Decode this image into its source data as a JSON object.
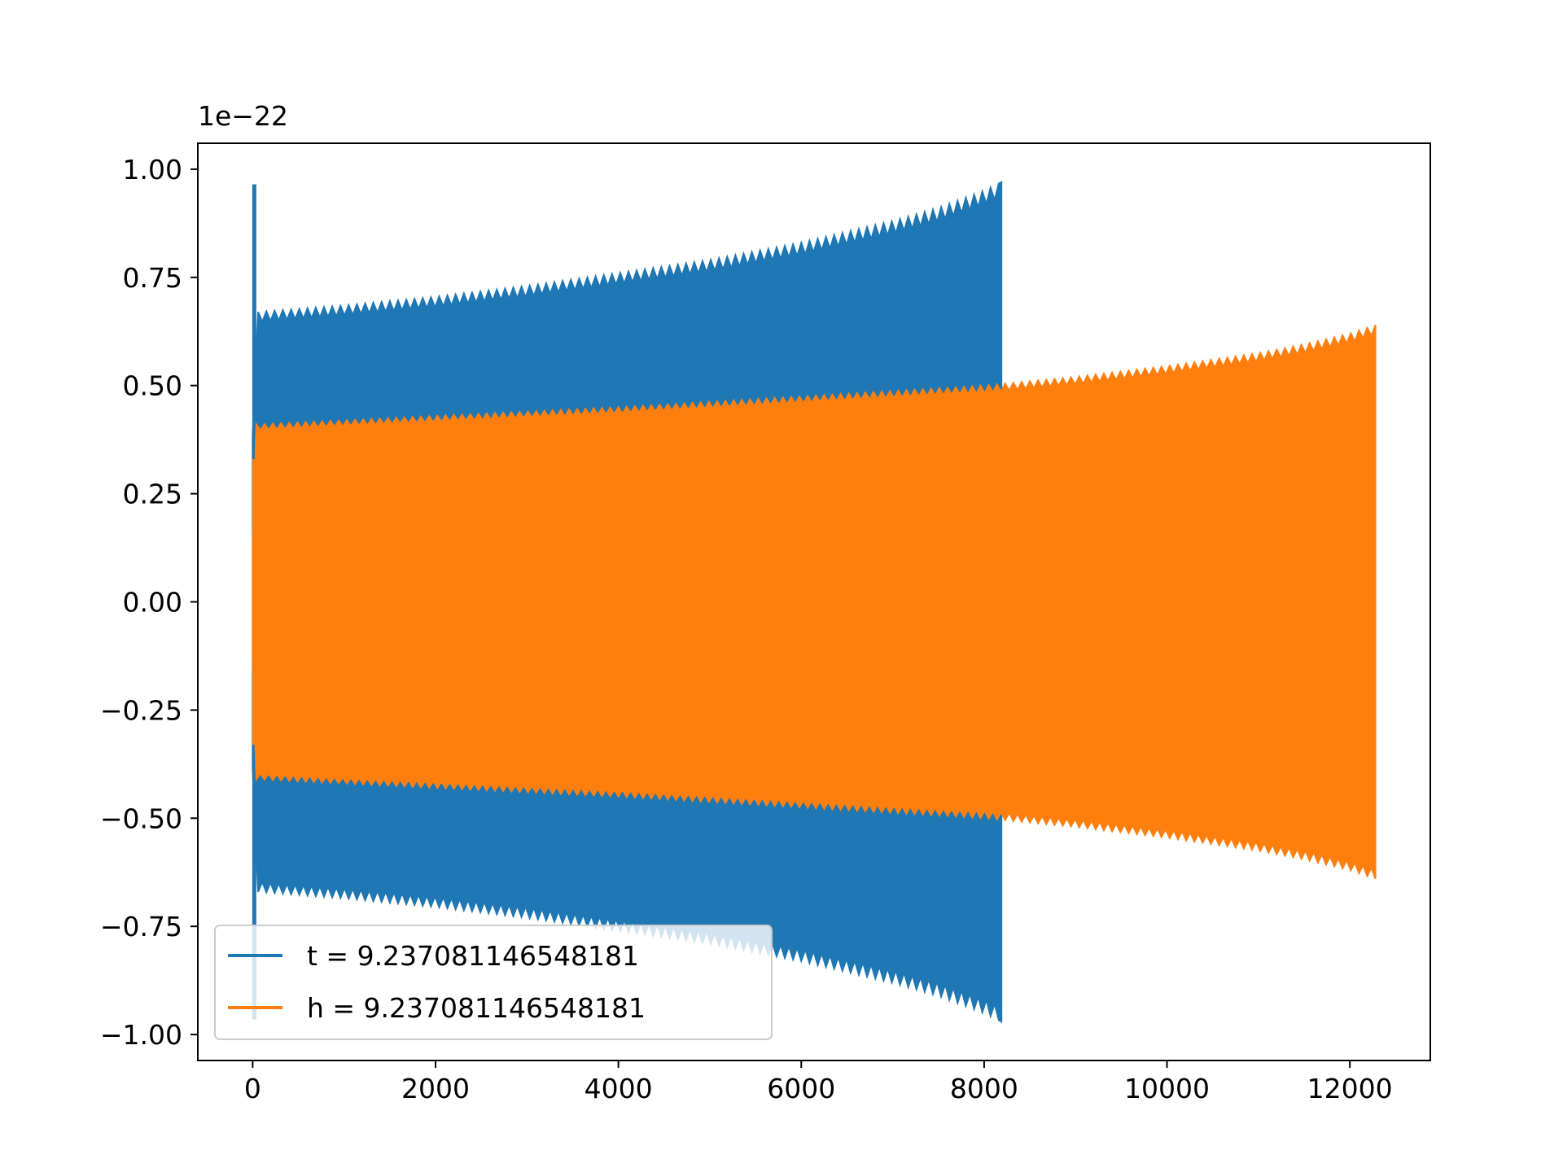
{
  "chart_data": {
    "type": "line",
    "title": "",
    "xlabel": "",
    "ylabel": "",
    "y_offset_label": "1e−22",
    "xlim": [
      -600,
      12880
    ],
    "ylim": [
      -1.06,
      1.06
    ],
    "x_ticks": [
      0,
      2000,
      4000,
      6000,
      8000,
      10000,
      12000
    ],
    "x_tick_labels": [
      "0",
      "2000",
      "4000",
      "6000",
      "8000",
      "10000",
      "12000"
    ],
    "y_ticks": [
      1.0,
      0.75,
      0.5,
      0.25,
      0.0,
      -0.25,
      -0.5,
      -0.75,
      -1.0
    ],
    "y_tick_labels": [
      "1.00",
      "0.75",
      "0.50",
      "0.25",
      "0.00",
      "−0.25",
      "−0.50",
      "−0.75",
      "−1.00"
    ],
    "grid": false,
    "legend_position": "lower-left",
    "series": [
      {
        "name": "t = 9.237081146548181",
        "color": "#1f77b4",
        "kind": "oscillating-envelope",
        "x_range": [
          0,
          8190
        ],
        "spike": {
          "x": 0,
          "y_max": 0.965,
          "y_min": -0.965
        },
        "envelope": {
          "x": [
            60,
            1000,
            2000,
            3000,
            4000,
            5000,
            6000,
            7000,
            7500,
            8000,
            8190
          ],
          "amplitude": [
            0.67,
            0.685,
            0.705,
            0.73,
            0.76,
            0.79,
            0.83,
            0.88,
            0.91,
            0.95,
            0.97
          ]
        },
        "drawing_order": 0
      },
      {
        "name": "h = 9.237081146548181",
        "color": "#ff7f0e",
        "kind": "oscillating-envelope",
        "x_range": [
          0,
          12280
        ],
        "spike": {
          "x": 0,
          "y_max": 0.33,
          "y_min": -0.33
        },
        "envelope": {
          "x": [
            40,
            2000,
            4000,
            6000,
            8000,
            9000,
            10000,
            11000,
            11500,
            12000,
            12280
          ],
          "amplitude": [
            0.41,
            0.43,
            0.45,
            0.475,
            0.5,
            0.52,
            0.545,
            0.575,
            0.595,
            0.62,
            0.64
          ]
        },
        "drawing_order": 1
      }
    ]
  }
}
